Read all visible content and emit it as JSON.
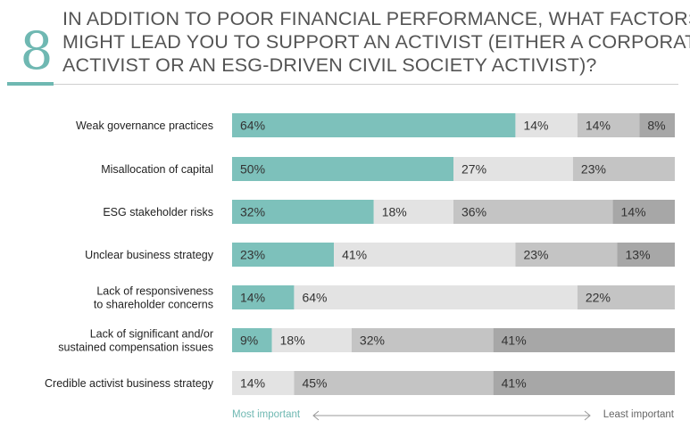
{
  "question": {
    "number": "8",
    "lines": [
      "IN ADDITION TO POOR FINANCIAL PERFORMANCE, WHAT FACTORS",
      "MIGHT LEAD YOU TO SUPPORT AN ACTIVIST (EITHER A CORPORATE",
      "ACTIVIST OR AN ESG-DRIVEN CIVIL SOCIETY ACTIVIST)?"
    ]
  },
  "colors": [
    "#7dc1bb",
    "#e3e3e3",
    "#c4c4c4",
    "#a7a7a7"
  ],
  "chart_data": {
    "type": "bar",
    "orientation": "horizontal-stacked-100",
    "categories": [
      "Weak governance practices",
      "Misallocation of capital",
      "ESG stakeholder risks",
      "Unclear business strategy",
      "Lack of responsiveness to shareholder concerns",
      "Lack of significant and/or sustained compensation issues",
      "Credible activist business strategy"
    ],
    "category_lines": [
      [
        "Weak governance practices"
      ],
      [
        "Misallocation of capital"
      ],
      [
        "ESG stakeholder risks"
      ],
      [
        "Unclear business strategy"
      ],
      [
        "Lack of responsiveness",
        "to shareholder concerns"
      ],
      [
        "Lack of significant and/or",
        "sustained compensation issues"
      ],
      [
        "Credible activist business strategy"
      ]
    ],
    "rows": [
      [
        {
          "v": 64,
          "c": 0
        },
        {
          "v": 14,
          "c": 1
        },
        {
          "v": 14,
          "c": 2
        },
        {
          "v": 8,
          "c": 3
        }
      ],
      [
        {
          "v": 50,
          "c": 0
        },
        {
          "v": 27,
          "c": 1
        },
        {
          "v": 23,
          "c": 2
        }
      ],
      [
        {
          "v": 32,
          "c": 0
        },
        {
          "v": 18,
          "c": 1
        },
        {
          "v": 36,
          "c": 2
        },
        {
          "v": 14,
          "c": 3
        }
      ],
      [
        {
          "v": 23,
          "c": 0
        },
        {
          "v": 41,
          "c": 1
        },
        {
          "v": 23,
          "c": 2
        },
        {
          "v": 13,
          "c": 3
        }
      ],
      [
        {
          "v": 14,
          "c": 0
        },
        {
          "v": 64,
          "c": 1
        },
        {
          "v": 22,
          "c": 2
        }
      ],
      [
        {
          "v": 9,
          "c": 0
        },
        {
          "v": 18,
          "c": 1
        },
        {
          "v": 32,
          "c": 2
        },
        {
          "v": 41,
          "c": 3
        }
      ],
      [
        {
          "v": 14,
          "c": 1
        },
        {
          "v": 45,
          "c": 2
        },
        {
          "v": 41,
          "c": 3
        }
      ]
    ],
    "value_suffix": "%",
    "legend_left": "Most important",
    "legend_right": "Least important",
    "xlim": [
      0,
      100
    ],
    "grid": false
  }
}
